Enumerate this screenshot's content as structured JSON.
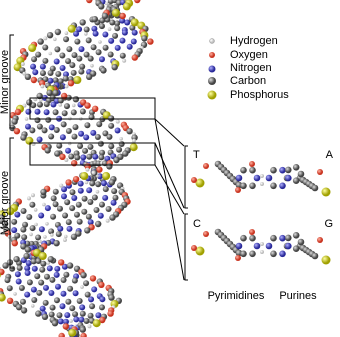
{
  "grooves": {
    "minor": "Minor groove",
    "major": "Major groove"
  },
  "legend": [
    "Hydrogen",
    "Oxygen",
    "Nitrogen",
    "Carbon",
    "Phosphorus"
  ],
  "pairs": [
    {
      "left": "T",
      "right": "A"
    },
    {
      "left": "C",
      "right": "G"
    }
  ],
  "captions": {
    "pyrimidines": "Pyrimidines",
    "purines": "Purines"
  }
}
